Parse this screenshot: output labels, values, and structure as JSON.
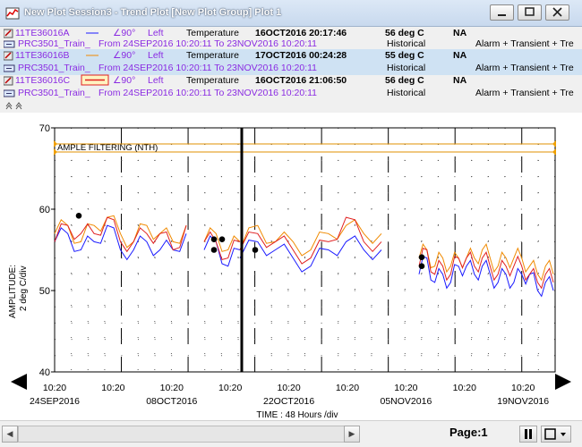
{
  "window": {
    "title": "New Plot Session3 - Trend Plot [New Plot Group] Plot 1"
  },
  "traces": [
    {
      "tag": "11TE36016A",
      "angle": "90°",
      "axis_side": "Left",
      "description": "Temperature",
      "timestamp": "16OCT2016 20:17:46",
      "value": "56 deg C",
      "quality": "NA",
      "source": "PRC3501_Train_",
      "range": "From 24SEP2016 10:20:11 To 23NOV2016 10:20:11",
      "mode": "Historical",
      "alarms": "Alarm + Transient + Tre",
      "color": "#1a1aff"
    },
    {
      "tag": "11TE36016B",
      "angle": "90°",
      "axis_side": "Left",
      "description": "Temperature",
      "timestamp": "17OCT2016 00:24:28",
      "value": "55 deg C",
      "quality": "NA",
      "source": "PRC3501_Train_",
      "range": "From 24SEP2016 10:20:11 To 23NOV2016 10:20:11",
      "mode": "Historical",
      "alarms": "Alarm + Transient + Tre",
      "color": "#f08a00"
    },
    {
      "tag": "11TE36016C",
      "angle": "90°",
      "axis_side": "Left",
      "description": "Temperature",
      "timestamp": "16OCT2016 21:06:50",
      "value": "56 deg C",
      "quality": "NA",
      "source": "PRC3501_Train_",
      "range": "From 24SEP2016 10:20:11 To 23NOV2016 10:20:11",
      "mode": "Historical",
      "alarms": "Alarm + Transient + Tre",
      "color": "#e02020"
    }
  ],
  "plot": {
    "y_label_line1": "AMPLITUDE:",
    "y_label_line2": "2 deg C/div",
    "x_label": "TIME : 48 Hours /div",
    "annotation": "AMPLE FILTERING (NTH)",
    "y_ticks": [
      "70",
      "60",
      "50",
      "40"
    ],
    "x_ticks": [
      {
        "time": "10:20",
        "date": "24SEP2016"
      },
      {
        "time": "10:20",
        "date": ""
      },
      {
        "time": "10:20",
        "date": "08OCT2016"
      },
      {
        "time": "10:20",
        "date": ""
      },
      {
        "time": "10:20",
        "date": "22OCT2016"
      },
      {
        "time": "10:20",
        "date": ""
      },
      {
        "time": "10:20",
        "date": "05NOV2016"
      },
      {
        "time": "10:20",
        "date": ""
      },
      {
        "time": "10:20",
        "date": "19NOV2016"
      }
    ]
  },
  "chart_data": {
    "type": "line",
    "ylim": [
      40,
      70
    ],
    "series": [
      {
        "name": "11TE36016A",
        "color": "#1a1aff",
        "values": [
          56,
          57,
          55,
          56,
          58,
          55,
          55,
          56,
          55,
          55,
          57,
          55,
          56,
          53,
          55,
          54,
          56,
          55,
          54,
          53,
          55,
          56,
          55,
          55,
          54,
          53,
          55,
          52,
          54,
          51,
          52,
          51,
          53,
          53,
          52,
          53,
          52,
          51,
          52,
          51,
          52,
          52,
          50,
          51,
          50
        ]
      },
      {
        "name": "11TE36016B",
        "color": "#f08a00",
        "values": [
          57,
          58,
          56,
          58,
          59,
          57,
          56,
          58,
          57,
          56,
          58,
          56,
          57,
          55,
          56,
          55,
          58,
          56,
          56,
          55,
          57,
          58,
          57,
          57,
          56,
          55,
          56,
          54,
          55,
          53,
          54,
          53,
          54,
          54,
          54,
          55,
          54,
          53,
          54,
          54,
          54,
          53,
          52,
          53,
          52
        ]
      },
      {
        "name": "11TE36016C",
        "color": "#e02020",
        "values": [
          56,
          58,
          57,
          57,
          59,
          56,
          56,
          57,
          57,
          55,
          58,
          56,
          56,
          54,
          56,
          55,
          57,
          56,
          55,
          54,
          56,
          59,
          56,
          56,
          55,
          54,
          55,
          53,
          55,
          52,
          53,
          52,
          54,
          54,
          53,
          54,
          53,
          52,
          53,
          53,
          53,
          52,
          51,
          52,
          51
        ]
      }
    ]
  },
  "status": {
    "page_label": "Page:1"
  }
}
